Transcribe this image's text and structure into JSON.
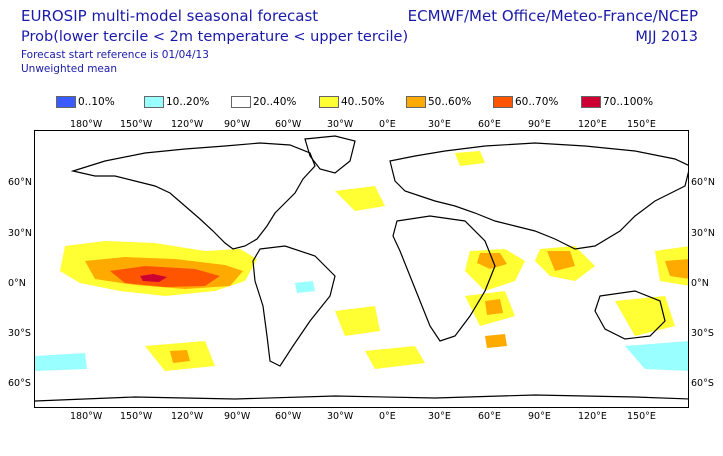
{
  "header": {
    "title": "EUROSIP multi-model seasonal forecast",
    "subtitle": "Prob(lower tercile < 2m temperature < upper tercile)",
    "reference": "Forecast start reference is 01/04/13",
    "mean_type": "Unweighted mean",
    "centres": "ECMWF/Met Office/Meteo-France/NCEP",
    "period": "MJJ 2013"
  },
  "legend": [
    {
      "label": "0..10%",
      "color": "#3a5cff"
    },
    {
      "label": "10..20%",
      "color": "#99ffff"
    },
    {
      "label": "20..40%",
      "color": "#ffffff"
    },
    {
      "label": "40..50%",
      "color": "#ffff33"
    },
    {
      "label": "50..60%",
      "color": "#ffaa00"
    },
    {
      "label": "60..70%",
      "color": "#ff5500"
    },
    {
      "label": "70..100%",
      "color": "#cc0033"
    }
  ],
  "axes": {
    "longitude_labels": [
      "180°W",
      "150°W",
      "120°W",
      "90°W",
      "60°W",
      "30°W",
      "0°E",
      "30°E",
      "60°E",
      "90°E",
      "120°E",
      "150°E"
    ],
    "latitude_labels": [
      "60°N",
      "30°N",
      "0°N",
      "30°S",
      "60°S"
    ]
  }
}
